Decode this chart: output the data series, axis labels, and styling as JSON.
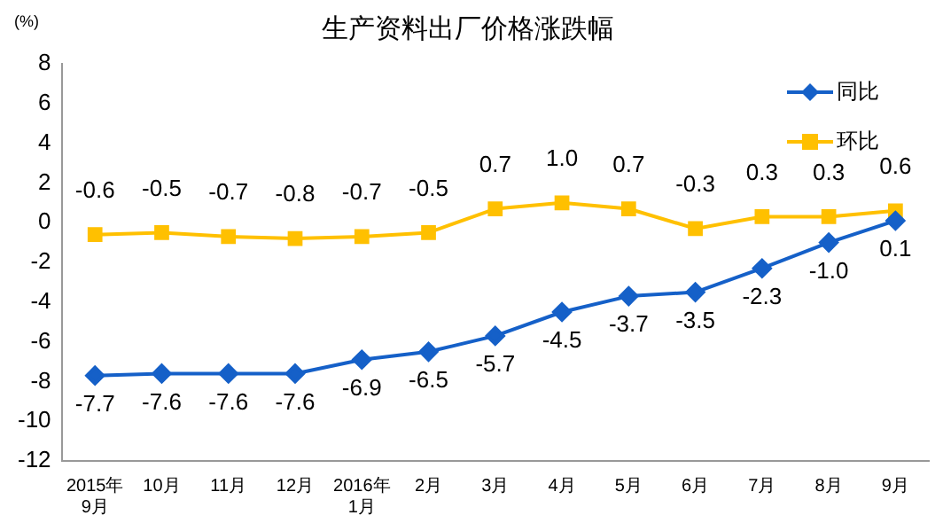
{
  "chart_data": {
    "type": "line",
    "title": "生产资料出厂价格涨跌幅",
    "ylabel": "(%)",
    "categories": [
      "2015年\n9月",
      "10月",
      "11月",
      "12月",
      "2016年\n1月",
      "2月",
      "3月",
      "4月",
      "5月",
      "6月",
      "7月",
      "8月",
      "9月"
    ],
    "series": [
      {
        "name": "同比",
        "color": "#1560c8",
        "marker": "diamond",
        "values": [
          -7.7,
          -7.6,
          -7.6,
          -7.6,
          -6.9,
          -6.5,
          -5.7,
          -4.5,
          -3.7,
          -3.5,
          -2.3,
          -1.0,
          0.1
        ],
        "value_labels": [
          "-7.7",
          "-7.6",
          "-7.6",
          "-7.6",
          "-6.9",
          "-6.5",
          "-5.7",
          "-4.5",
          "-3.7",
          "-3.5",
          "-2.3",
          "-1.0",
          "0.1"
        ]
      },
      {
        "name": "环比",
        "color": "#ffc000",
        "marker": "square",
        "values": [
          -0.6,
          -0.5,
          -0.7,
          -0.8,
          -0.7,
          -0.5,
          0.7,
          1.0,
          0.7,
          -0.3,
          0.3,
          0.3,
          0.6
        ],
        "value_labels": [
          "-0.6",
          "-0.5",
          "-0.7",
          "-0.8",
          "-0.7",
          "-0.5",
          "0.7",
          "1.0",
          "0.7",
          "-0.3",
          "0.3",
          "0.3",
          "0.6"
        ]
      }
    ],
    "ylim": [
      -12,
      8
    ],
    "yticks": [
      -12,
      -10,
      -8,
      -6,
      -4,
      -2,
      0,
      2,
      4,
      6,
      8
    ],
    "grid": false,
    "legend": "top right"
  }
}
